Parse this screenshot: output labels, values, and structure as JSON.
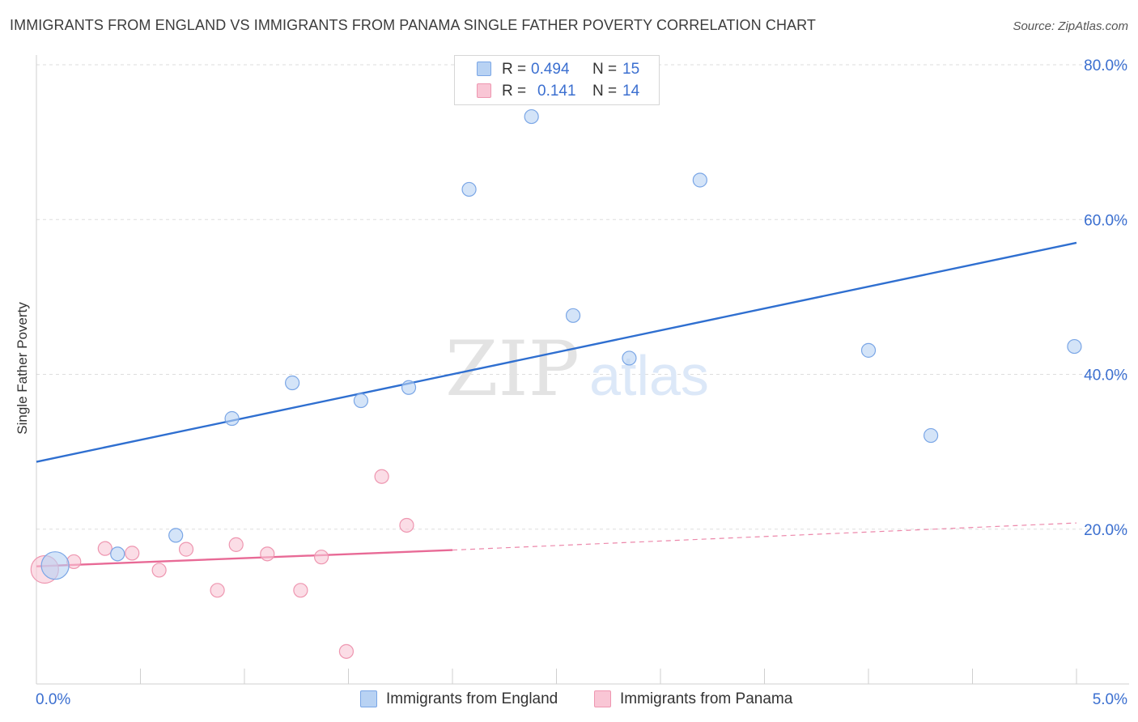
{
  "title": "IMMIGRANTS FROM ENGLAND VS IMMIGRANTS FROM PANAMA SINGLE FATHER POVERTY CORRELATION CHART",
  "source": "Source: ZipAtlas.com",
  "watermark": {
    "zip": "ZIP",
    "atlas": "atlas"
  },
  "colors": {
    "england_fill": "#b8d2f3",
    "england_stroke": "#7aa6e6",
    "england_line": "#2f6fd0",
    "panama_fill": "#f9c6d5",
    "panama_stroke": "#ee96b0",
    "panama_line": "#e86a96",
    "accent_text": "#3b6fd0",
    "grid": "#dddddd"
  },
  "legend": {
    "r_label": "R =",
    "n_label": "N =",
    "england": {
      "r": "0.494",
      "n": "15"
    },
    "panama": {
      "r": "0.141",
      "n": "14"
    }
  },
  "chart_data": {
    "type": "scatter",
    "title": "IMMIGRANTS FROM ENGLAND VS IMMIGRANTS FROM PANAMA SINGLE FATHER POVERTY CORRELATION CHART",
    "xlabel": "",
    "ylabel": "Single Father Poverty",
    "xlim": [
      0,
      5
    ],
    "ylim": [
      0,
      80
    ],
    "x_tick_labels": [
      "0.0%",
      "5.0%"
    ],
    "y_ticks": [
      20,
      40,
      60,
      80
    ],
    "y_tick_labels": [
      "20.0%",
      "40.0%",
      "60.0%",
      "80.0%"
    ],
    "grid": true,
    "series": [
      {
        "name": "Immigrants from England",
        "points": [
          {
            "x": 0.09,
            "y": 15.3,
            "size": "large"
          },
          {
            "x": 0.39,
            "y": 16.8
          },
          {
            "x": 0.67,
            "y": 19.2
          },
          {
            "x": 0.94,
            "y": 34.3
          },
          {
            "x": 1.23,
            "y": 38.9
          },
          {
            "x": 1.56,
            "y": 36.6
          },
          {
            "x": 1.79,
            "y": 38.3
          },
          {
            "x": 2.08,
            "y": 63.9
          },
          {
            "x": 2.38,
            "y": 73.3
          },
          {
            "x": 2.58,
            "y": 47.6
          },
          {
            "x": 2.85,
            "y": 42.1
          },
          {
            "x": 3.19,
            "y": 65.1
          },
          {
            "x": 4.0,
            "y": 43.1
          },
          {
            "x": 4.3,
            "y": 32.1
          },
          {
            "x": 4.99,
            "y": 43.6
          }
        ],
        "trend": {
          "x0": 0.0,
          "y0": 28.7,
          "x1": 5.0,
          "y1": 57.0
        }
      },
      {
        "name": "Immigrants from Panama",
        "points": [
          {
            "x": 0.04,
            "y": 14.8,
            "size": "large"
          },
          {
            "x": 0.18,
            "y": 15.8
          },
          {
            "x": 0.33,
            "y": 17.5
          },
          {
            "x": 0.46,
            "y": 16.9
          },
          {
            "x": 0.59,
            "y": 14.7
          },
          {
            "x": 0.72,
            "y": 17.4
          },
          {
            "x": 0.87,
            "y": 12.1
          },
          {
            "x": 0.96,
            "y": 18.0
          },
          {
            "x": 1.11,
            "y": 16.8
          },
          {
            "x": 1.27,
            "y": 12.1
          },
          {
            "x": 1.37,
            "y": 16.4
          },
          {
            "x": 1.49,
            "y": 4.2
          },
          {
            "x": 1.66,
            "y": 26.8
          },
          {
            "x": 1.78,
            "y": 20.5
          }
        ],
        "trend": {
          "x0": 0.0,
          "y0": 15.2,
          "x1": 2.0,
          "y1": 17.3
        },
        "trend_extension": {
          "x0": 2.0,
          "y0": 17.3,
          "x1": 5.0,
          "y1": 20.8
        }
      }
    ]
  }
}
